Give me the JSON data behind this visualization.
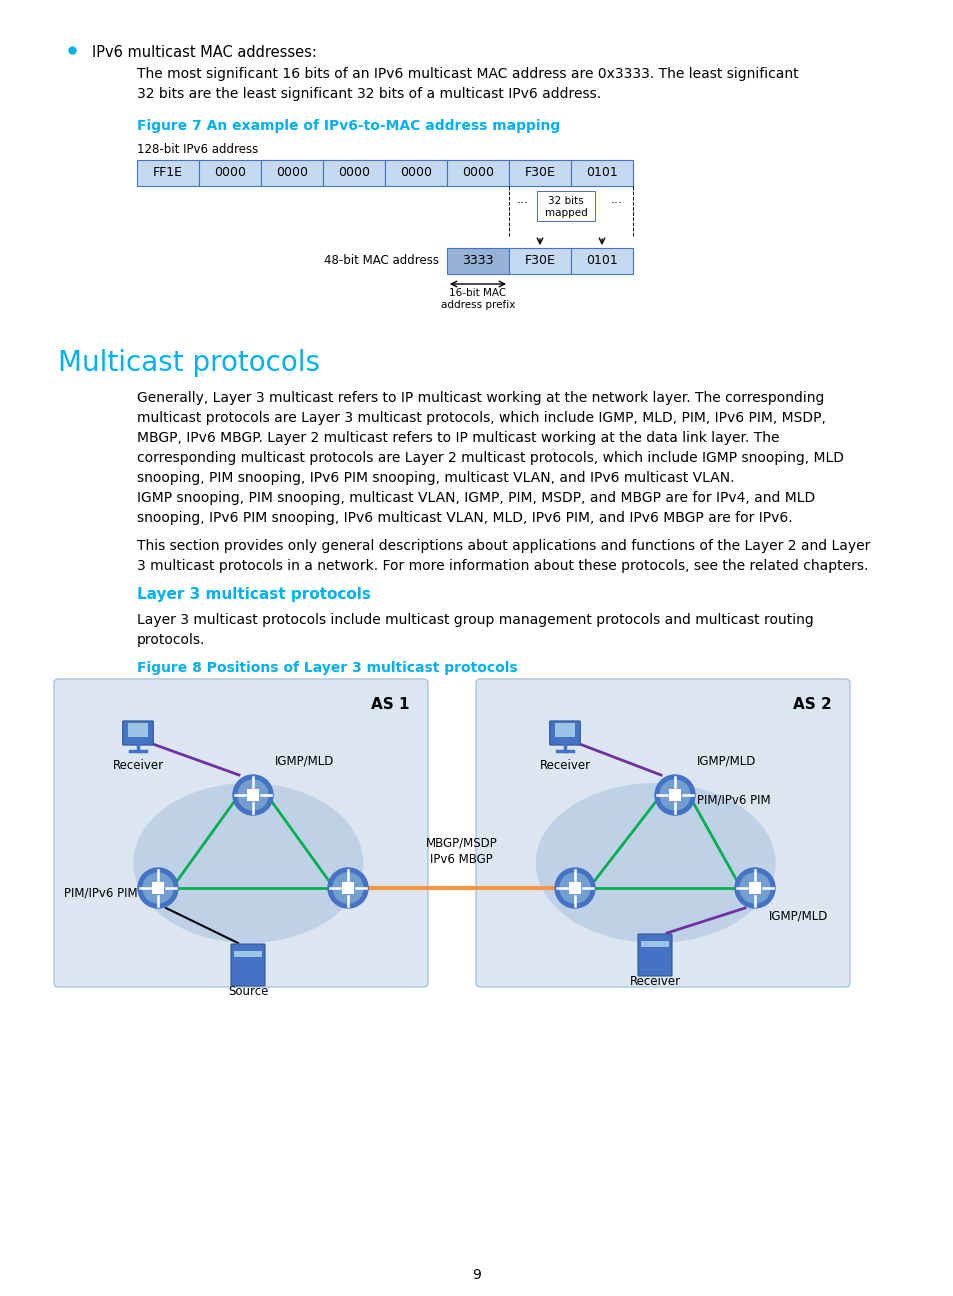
{
  "bg_color": "#ffffff",
  "heading_color": "#00b0f0",
  "text_color": "#000000",
  "bullet_color": "#00b0f0",
  "box_fill": "#c5d9f1",
  "box_border": "#4472c4",
  "mac_box_dark": "#95b3d7",
  "fig7_title": "Figure 7 An example of IPv6-to-MAC address mapping",
  "ipv6_label": "128-bit IPv6 address",
  "ipv6_cells": [
    "FF1E",
    "0000",
    "0000",
    "0000",
    "0000",
    "0000",
    "F30E",
    "0101"
  ],
  "mac_label": "48-bit MAC address",
  "mac_cells": [
    "3333",
    "F30E",
    "0101"
  ],
  "section_title": "Multicast protocols",
  "subsection_title": "Layer 3 multicast protocols",
  "fig8_title": "Figure 8 Positions of Layer 3 multicast protocols",
  "as1_label": "AS 1",
  "as2_label": "AS 2",
  "diagram_bg": "#dce6f1",
  "ellipse_color": "#b8cce4",
  "orange_line": "#f79646",
  "green_line": "#00b050",
  "magenta_line": "#7030a0",
  "black_line": "#000000",
  "teal_line": "#00b0f0"
}
